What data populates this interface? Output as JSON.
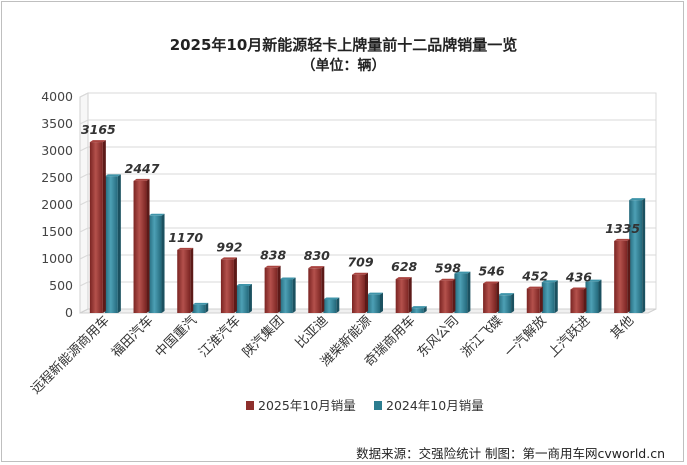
{
  "chart_data": {
    "type": "bar",
    "title": "2025年10月新能源轻卡上牌量前十二品牌销量一览",
    "subtitle": "（单位：辆）",
    "categories": [
      "远程新能源商用车",
      "福田汽车",
      "中国重汽",
      "江淮汽车",
      "陕汽集团",
      "比亚迪",
      "潍柴新能源",
      "奇瑞商用车",
      "东风公司",
      "浙江飞碟",
      "一汽解放",
      "上汽跃进",
      "其他"
    ],
    "series": [
      {
        "name": "2025年10月销量",
        "color": "#8e2f2c",
        "values": [
          3165,
          2447,
          1170,
          992,
          838,
          830,
          709,
          628,
          598,
          546,
          452,
          436,
          1335
        ],
        "labels_shown": true
      },
      {
        "name": "2024年10月销量",
        "color": "#2c7d90",
        "values": [
          2530,
          1800,
          150,
          500,
          620,
          250,
          340,
          90,
          730,
          330,
          570,
          580,
          2090
        ],
        "labels_shown": false
      }
    ],
    "ylim": [
      0,
      4000
    ],
    "yticks": [
      0,
      500,
      1000,
      1500,
      2000,
      2500,
      3000,
      3500,
      4000
    ],
    "legend_position": "bottom",
    "grid": true
  },
  "footer": {
    "source": "数据来源：交强险统计   制图：第一商用车网cvworld.cn"
  }
}
